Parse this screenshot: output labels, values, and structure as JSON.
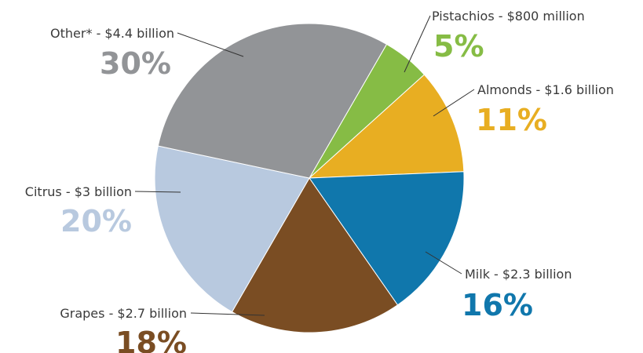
{
  "chart_data": {
    "type": "pie",
    "title": "",
    "start_angle_deg": -60,
    "direction": "clockwise",
    "slices": [
      {
        "category": "Pistachios",
        "label": "Pistachios - $800 million",
        "percent_label": "5%",
        "value": 5,
        "color": "#86BC45"
      },
      {
        "category": "Almonds",
        "label": "Almonds - $1.6 billion",
        "percent_label": "11%",
        "value": 11,
        "color": "#E8AE22"
      },
      {
        "category": "Milk",
        "label": "Milk - $2.3 billion",
        "percent_label": "16%",
        "value": 16,
        "color": "#1077AC"
      },
      {
        "category": "Grapes",
        "label": "Grapes - $2.7 billion",
        "percent_label": "18%",
        "value": 18,
        "color": "#7A4D23"
      },
      {
        "category": "Citrus",
        "label": "Citrus - $3 billion",
        "percent_label": "20%",
        "value": 20,
        "color": "#B8C9DF"
      },
      {
        "category": "Other*",
        "label": "Other* - $4.4 billion",
        "percent_label": "30%",
        "value": 30,
        "color": "#929497"
      }
    ]
  }
}
